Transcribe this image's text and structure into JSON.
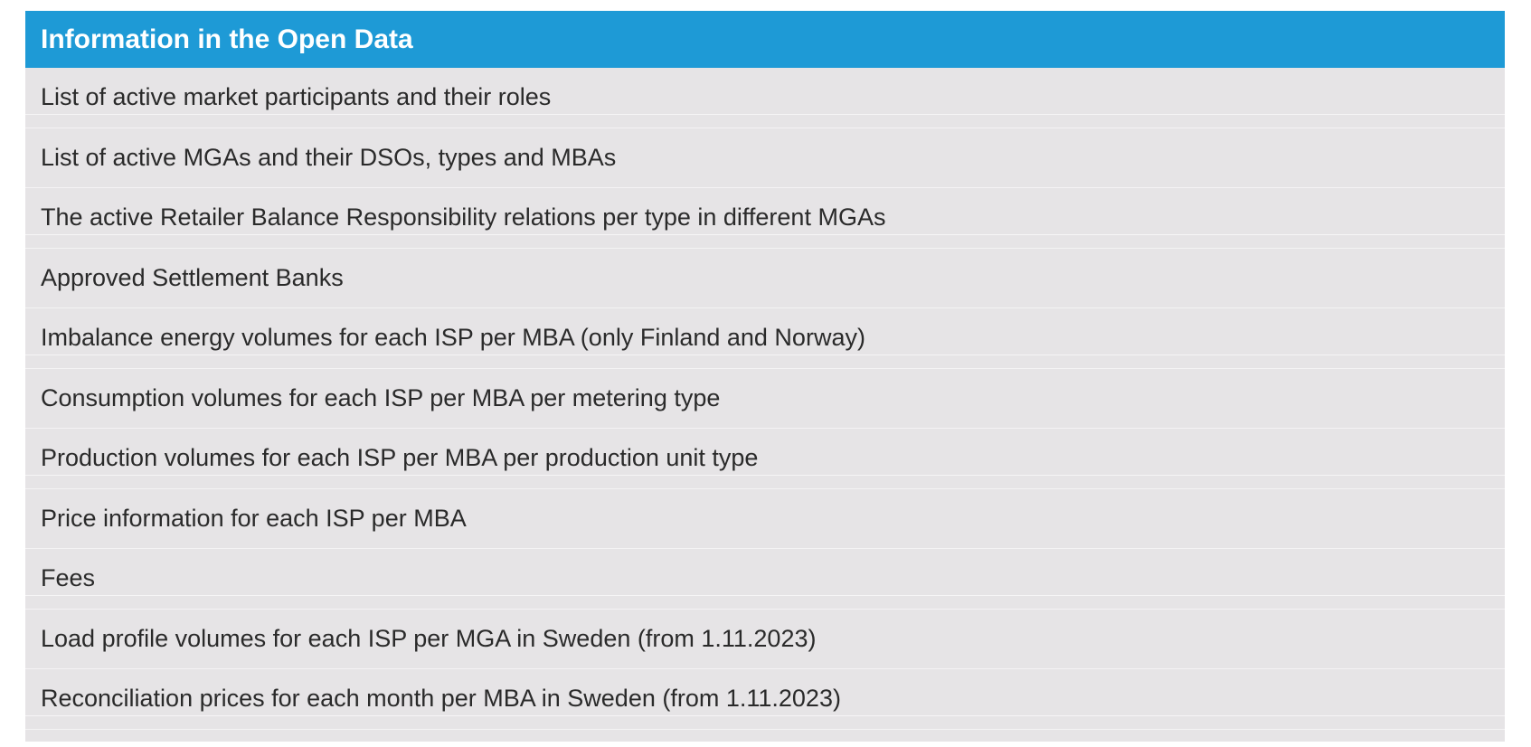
{
  "table": {
    "title": "Information in the Open Data",
    "rows": [
      "List of active market participants and their roles",
      "List of active MGAs and their DSOs, types and MBAs",
      "The active Retailer Balance Responsibility relations per type in different MGAs",
      "Approved Settlement Banks",
      "Imbalance energy volumes for each ISP per MBA (only Finland and Norway)",
      "Consumption volumes for each ISP per MBA per metering type",
      "Production volumes for each ISP per MBA per production unit type",
      "Price information for each ISP per MBA",
      "Fees",
      "Load profile volumes for each ISP per MGA in Sweden (from 1.11.2023)",
      "Reconciliation prices for each month per MBA in Sweden (from 1.11.2023)"
    ]
  },
  "colors": {
    "header_background": "#1e9ad6",
    "header_text": "#ffffff",
    "row_background": "#e6e4e6",
    "row_text": "#2a2a2a"
  }
}
